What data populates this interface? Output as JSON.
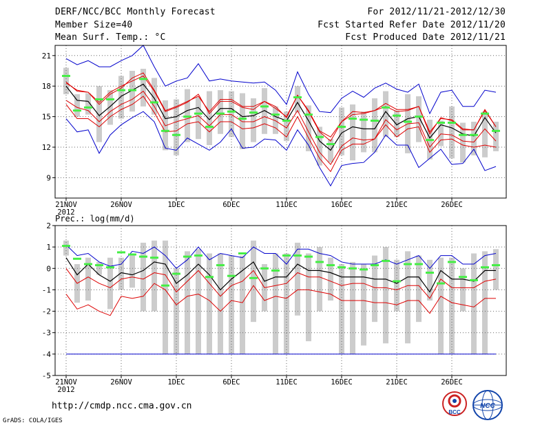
{
  "header": {
    "title": "DERF/NCC/BCC Monthly Forecast",
    "member_size": "Member Size=40",
    "variable": "Mean Surf. Temp.: °C",
    "period": "For 2012/11/21-2012/12/30",
    "fcst_started": "Fcst Started Refer Date 2012/11/20",
    "fcst_produced": "Fcst Produced Date 2012/11/21"
  },
  "footer": {
    "url": "http://cmdp.ncc.cma.gov.cn",
    "grads": "GrADS: COLA/IGES",
    "logo_bcc": "BCC",
    "logo_ncc": "NCC"
  },
  "colors": {
    "max_line": "#0000cc",
    "mean_line": "#000000",
    "spread_line": "#dd0000",
    "bar": "#cccccc",
    "obs_tick": "#44ee44",
    "grid": "#666666"
  },
  "chart_data": [
    {
      "type": "line",
      "title": "Mean Surf. Temp.: °C",
      "ylabel": "°C",
      "ylim": [
        7,
        22
      ],
      "yticks": [
        "9",
        "12",
        "15",
        "18",
        "21"
      ],
      "xticks": [
        "21NOV",
        "26NOV",
        "1DEC",
        "6DEC",
        "11DEC",
        "16DEC",
        "21DEC",
        "26DEC"
      ],
      "xticks_year": "2012",
      "days": 40,
      "series": [
        {
          "name": "max",
          "values": [
            20.7,
            20.1,
            20.5,
            19.9,
            19.9,
            20.5,
            21.0,
            22.0,
            19.9,
            18.0,
            18.5,
            18.8,
            20.2,
            18.5,
            18.7,
            18.5,
            18.4,
            18.3,
            18.4,
            17.6,
            16.2,
            19.4,
            17.2,
            15.5,
            15.4,
            16.8,
            17.5,
            16.9,
            17.8,
            18.3,
            17.7,
            17.4,
            18.2,
            15.3,
            17.4,
            17.6,
            16.0,
            16.0,
            17.6,
            17.4
          ]
        },
        {
          "name": "upper",
          "values": [
            18.4,
            17.5,
            17.4,
            16.2,
            17.2,
            17.8,
            18.8,
            19.3,
            17.6,
            15.6,
            16.0,
            16.5,
            17.0,
            15.5,
            16.7,
            16.7,
            16.0,
            16.0,
            16.5,
            15.8,
            15.0,
            17.1,
            15.5,
            13.5,
            12.6,
            14.5,
            15.5,
            15.4,
            15.6,
            16.3,
            15.7,
            15.7,
            16.0,
            13.5,
            14.8,
            14.7,
            13.8,
            13.7,
            15.7,
            14.0
          ]
        },
        {
          "name": "mean",
          "values": [
            18.0,
            16.6,
            16.5,
            15.1,
            16.0,
            17.0,
            17.6,
            18.2,
            16.8,
            14.8,
            15.0,
            15.6,
            15.9,
            14.7,
            15.8,
            15.8,
            15.0,
            15.1,
            15.6,
            15.0,
            14.6,
            16.4,
            14.6,
            12.6,
            11.7,
            13.4,
            14.0,
            13.8,
            13.8,
            15.5,
            14.2,
            14.8,
            15.0,
            12.9,
            14.2,
            13.9,
            13.3,
            13.1,
            14.9,
            13.4
          ]
        },
        {
          "name": "lower",
          "values": [
            16.6,
            15.9,
            15.6,
            14.5,
            15.5,
            16.2,
            16.7,
            17.5,
            16.0,
            14.1,
            14.5,
            14.8,
            15.1,
            14.1,
            15.2,
            15.2,
            14.5,
            14.5,
            15.0,
            14.6,
            13.9,
            15.6,
            13.5,
            11.5,
            10.3,
            12.1,
            12.9,
            12.7,
            12.8,
            14.7,
            13.7,
            14.3,
            14.4,
            12.0,
            13.3,
            13.2,
            12.6,
            12.5,
            13.8,
            12.6
          ]
        },
        {
          "name": "min",
          "values": [
            14.8,
            13.5,
            13.7,
            11.4,
            13.2,
            14.2,
            14.9,
            15.5,
            14.5,
            11.9,
            11.7,
            12.9,
            12.3,
            11.7,
            12.5,
            13.8,
            11.9,
            12.0,
            12.8,
            12.7,
            11.7,
            13.7,
            12.2,
            10.0,
            8.2,
            10.2,
            10.4,
            10.5,
            11.5,
            13.2,
            12.2,
            12.2,
            10.0,
            10.9,
            11.8,
            10.3,
            10.4,
            11.8,
            9.7,
            10.1
          ]
        },
        {
          "name": "min2",
          "values": [
            14.8,
            13.5,
            13.7,
            11.4,
            13.2,
            14.2,
            14.9,
            15.5,
            14.5,
            11.9,
            11.7,
            12.9,
            12.3,
            11.7,
            12.5,
            13.8,
            11.9,
            12.0,
            12.8,
            12.7,
            11.7,
            13.7,
            12.2,
            10.0,
            8.2,
            10.2,
            10.4,
            10.5,
            11.5,
            13.2,
            12.2,
            12.2,
            10.0,
            10.9,
            11.8,
            10.3,
            10.4,
            11.8,
            9.7,
            9.7
          ]
        },
        {
          "name": "spread_low",
          "values": [
            16.2,
            14.8,
            14.8,
            14.0,
            15.0,
            15.7,
            16.2,
            17.0,
            15.4,
            13.5,
            13.6,
            14.3,
            14.5,
            13.5,
            14.5,
            14.5,
            13.8,
            13.9,
            14.3,
            13.9,
            13.0,
            15.0,
            12.9,
            10.9,
            9.6,
            11.7,
            12.3,
            12.3,
            12.8,
            14.2,
            13.0,
            13.8,
            14.0,
            11.5,
            12.7,
            12.8,
            12.2,
            12.0,
            12.2,
            12.0
          ]
        },
        {
          "name": "spread_high",
          "values": [
            18.3,
            17.6,
            17.4,
            16.4,
            17.4,
            18.0,
            18.5,
            19.0,
            17.5,
            15.5,
            15.9,
            16.4,
            17.2,
            15.3,
            16.5,
            16.5,
            15.9,
            15.7,
            16.5,
            16.0,
            14.9,
            17.1,
            15.6,
            13.6,
            13.0,
            14.5,
            15.2,
            15.3,
            15.6,
            16.0,
            15.5,
            15.6,
            16.0,
            13.3,
            14.9,
            14.6,
            13.7,
            13.7,
            15.6,
            14.0
          ]
        },
        {
          "name": "bar_low",
          "values": [
            17.2,
            15.0,
            15.2,
            12.5,
            14.2,
            14.8,
            15.5,
            16.0,
            15.2,
            11.7,
            11.2,
            12.5,
            12.8,
            12.2,
            13.3,
            13.0,
            11.8,
            12.5,
            13.3,
            13.3,
            12.6,
            15.4,
            11.6,
            10.2,
            10.5,
            11.2,
            10.7,
            11.5,
            11.5,
            13.0,
            13.0,
            11.4,
            12.5,
            10.8,
            12.1,
            10.9,
            10.5,
            11.2,
            11.0,
            11.6
          ]
        },
        {
          "name": "bar_high",
          "values": [
            19.8,
            17.2,
            17.3,
            18.0,
            17.6,
            19.0,
            19.5,
            19.7,
            18.8,
            16.6,
            16.7,
            17.7,
            16.9,
            17.5,
            17.6,
            17.5,
            17.3,
            16.8,
            17.8,
            16.0,
            15.5,
            18.0,
            16.1,
            14.0,
            12.8,
            15.9,
            16.2,
            15.5,
            16.8,
            17.5,
            15.6,
            17.2,
            17.0,
            14.7,
            14.6,
            16.0,
            14.4,
            14.5,
            15.5,
            14.5
          ]
        },
        {
          "name": "obs",
          "values": [
            19.0,
            15.6,
            15.9,
            16.7,
            16.7,
            17.6,
            17.6,
            18.7,
            16.4,
            13.6,
            13.2,
            15.0,
            15.3,
            14.0,
            15.3,
            15.5,
            14.8,
            15.4,
            16.0,
            15.2,
            14.6,
            16.9,
            15.2,
            13.0,
            12.3,
            14.0,
            14.8,
            14.7,
            14.6,
            15.9,
            15.1,
            14.5,
            15.0,
            12.7,
            14.4,
            14.4,
            13.2,
            13.2,
            15.3,
            13.6
          ]
        }
      ]
    },
    {
      "type": "line",
      "title": "Prec.: log(mm/d)",
      "ylabel": "log(mm/d)",
      "ylim": [
        -5,
        2
      ],
      "yticks": [
        "-5",
        "-4",
        "-3",
        "-2",
        "-1",
        "0",
        "1",
        "2"
      ],
      "xticks": [
        "21NOV",
        "26NOV",
        "1DEC",
        "6DEC",
        "11DEC",
        "16DEC",
        "21DEC",
        "26DEC"
      ],
      "xticks_year": "2012",
      "days": 40,
      "series": [
        {
          "name": "max",
          "values": [
            1.1,
            0.6,
            0.7,
            0.3,
            0.1,
            0.2,
            0.8,
            0.7,
            1.0,
            0.6,
            0.0,
            0.4,
            1.0,
            0.4,
            0.7,
            0.6,
            0.5,
            1.0,
            0.7,
            0.7,
            0.2,
            0.9,
            0.9,
            0.7,
            0.6,
            0.3,
            0.2,
            0.2,
            0.2,
            0.4,
            0.2,
            0.4,
            0.6,
            0.0,
            0.6,
            0.6,
            0.2,
            0.2,
            0.6,
            0.7
          ]
        },
        {
          "name": "mean",
          "values": [
            0.5,
            -0.3,
            0.2,
            -0.3,
            -0.6,
            -0.2,
            -0.3,
            -0.1,
            0.3,
            0.2,
            -0.7,
            -0.3,
            0.2,
            -0.3,
            -1.0,
            -0.5,
            -0.1,
            0.3,
            -0.6,
            -0.4,
            -0.4,
            0.2,
            -0.1,
            -0.1,
            -0.2,
            -0.4,
            -0.4,
            -0.4,
            -0.5,
            -0.5,
            -0.7,
            -0.4,
            -0.4,
            -1.1,
            -0.1,
            -0.5,
            -0.5,
            -0.6,
            -0.1,
            -0.1
          ]
        },
        {
          "name": "upper",
          "values": [
            0.0,
            -0.7,
            -0.4,
            -0.7,
            -0.9,
            -0.5,
            -0.4,
            -0.5,
            -0.2,
            -0.3,
            -1.1,
            -0.6,
            -0.1,
            -0.7,
            -1.3,
            -0.8,
            -0.6,
            -0.1,
            -0.9,
            -0.8,
            -0.7,
            -0.2,
            -0.4,
            -0.4,
            -0.6,
            -0.8,
            -0.7,
            -0.7,
            -0.9,
            -0.9,
            -1.0,
            -0.8,
            -0.8,
            -1.4,
            -0.5,
            -0.9,
            -0.9,
            -0.9,
            -0.6,
            -0.5
          ]
        },
        {
          "name": "lower",
          "values": [
            -1.2,
            -1.9,
            -1.7,
            -2.0,
            -2.2,
            -1.3,
            -1.4,
            -1.3,
            -0.7,
            -1.0,
            -1.7,
            -1.3,
            -1.2,
            -1.5,
            -2.0,
            -1.5,
            -1.6,
            -0.8,
            -1.5,
            -1.3,
            -1.4,
            -1.0,
            -1.0,
            -1.1,
            -1.2,
            -1.5,
            -1.5,
            -1.5,
            -1.6,
            -1.6,
            -1.7,
            -1.5,
            -1.5,
            -2.1,
            -1.3,
            -1.6,
            -1.7,
            -1.8,
            -1.4,
            -1.4
          ]
        },
        {
          "name": "bar_low",
          "values": [
            0.6,
            -1.6,
            -1.5,
            -0.3,
            -1.9,
            -1.0,
            -0.9,
            -2.0,
            -2.0,
            -4.0,
            -4.0,
            -4.0,
            -4.0,
            -4.0,
            -4.0,
            -4.0,
            -4.0,
            -2.5,
            -2.0,
            -4.0,
            -4.0,
            -2.2,
            -3.4,
            -2.0,
            -1.5,
            -4.0,
            -4.0,
            -3.6,
            -2.5,
            -3.5,
            -2.0,
            -3.5,
            -2.5,
            -1.5,
            -4.0,
            -4.0,
            -2.0,
            -4.0,
            -4.0,
            -1.0
          ]
        },
        {
          "name": "bar_high",
          "values": [
            1.3,
            0.2,
            0.5,
            0.3,
            0.5,
            0.5,
            0.6,
            1.2,
            1.3,
            1.3,
            0.0,
            0.8,
            0.9,
            0.7,
            0.7,
            0.6,
            0.6,
            1.3,
            0.2,
            0.7,
            0.7,
            1.2,
            0.7,
            1.0,
            0.5,
            0.2,
            0.3,
            0.2,
            0.6,
            1.0,
            0.4,
            0.8,
            0.6,
            0.4,
            0.5,
            0.5,
            0.0,
            0.7,
            0.8,
            0.9
          ]
        },
        {
          "name": "obs",
          "values": [
            1.05,
            0.45,
            0.2,
            0.15,
            0.05,
            0.75,
            0.65,
            0.55,
            0.5,
            -0.8,
            -0.25,
            0.55,
            0.6,
            -0.4,
            0.15,
            -0.35,
            0.7,
            -0.45,
            0.0,
            -0.1,
            0.6,
            0.6,
            0.55,
            0.3,
            0.15,
            0.05,
            0.0,
            -0.05,
            0.15,
            0.35,
            -0.6,
            0.2,
            0.2,
            -0.2,
            -0.7,
            0.3,
            -0.4,
            -0.55,
            0.05,
            0.15
          ]
        },
        {
          "name": "floor",
          "values": [
            -4,
            -4,
            -4,
            -4,
            -4,
            -4,
            -4,
            -4,
            -4,
            -4,
            -4,
            -4,
            -4,
            -4,
            -4,
            -4,
            -4,
            -4,
            -4,
            -4,
            -4,
            -4,
            -4,
            -4,
            -4,
            -4,
            -4,
            -4,
            -4,
            -4,
            -4,
            -4,
            -4,
            -4,
            -4,
            -4,
            -4,
            -4,
            -4,
            -4
          ]
        }
      ]
    }
  ]
}
